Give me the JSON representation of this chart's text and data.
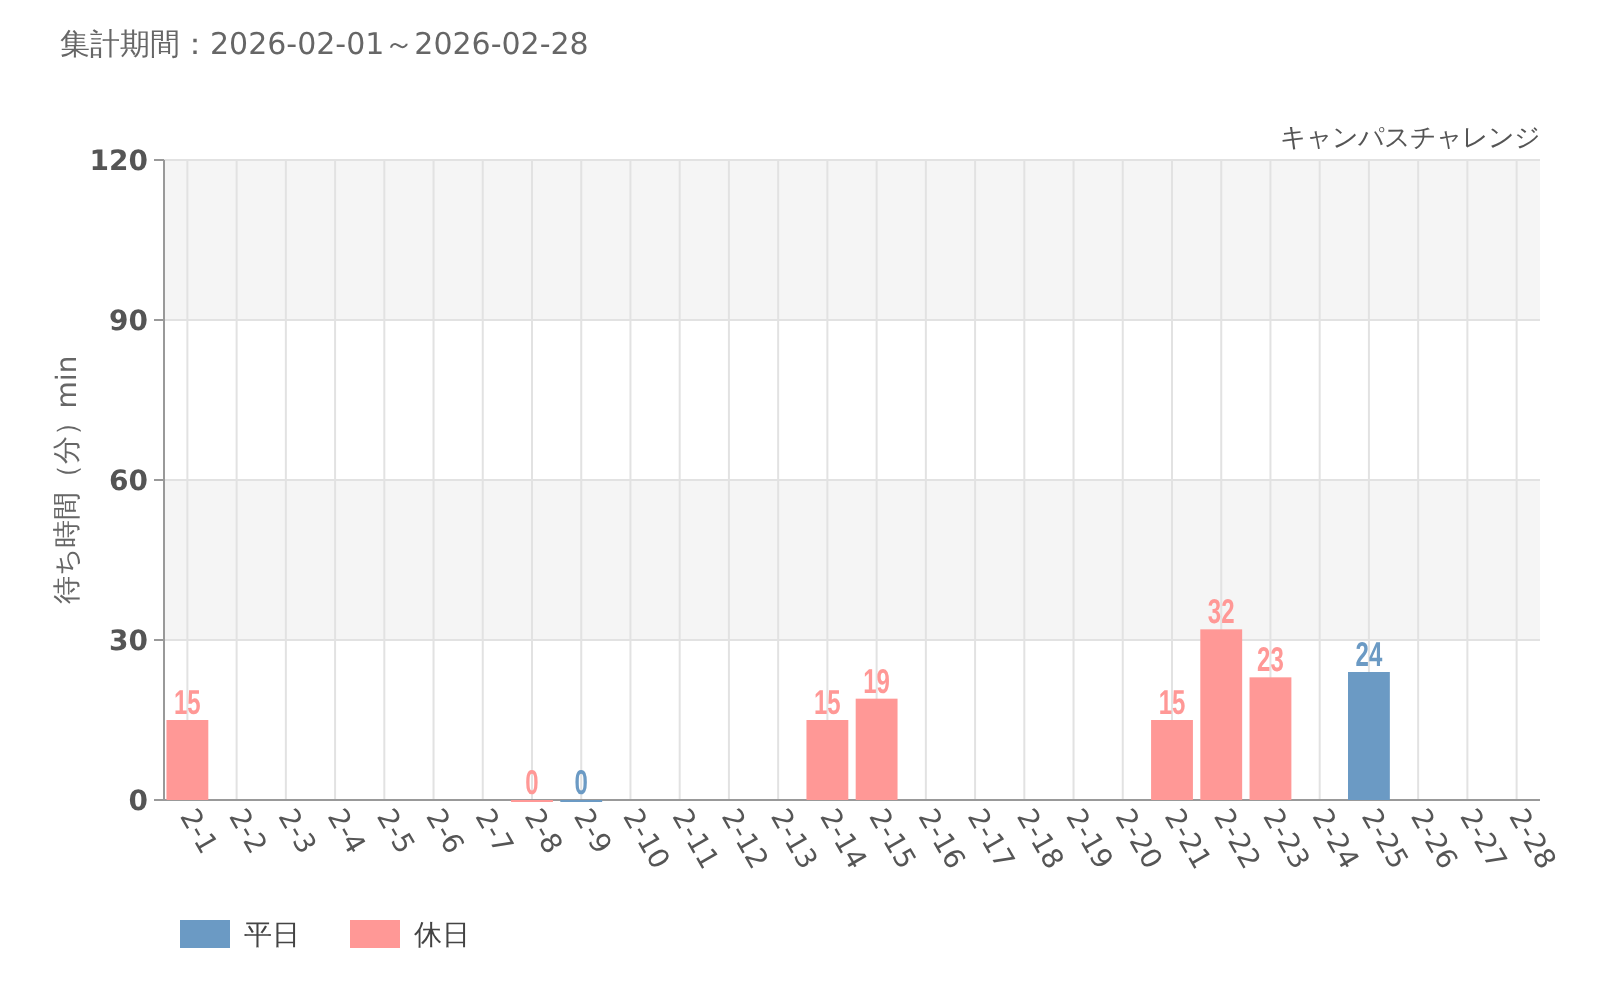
{
  "chart_data": {
    "type": "bar",
    "title": "集計期間：2026-02-01～2026-02-28",
    "subtitle": "キャンパスチャレンジ",
    "ylabel": "待ち時間（分）min",
    "categories": [
      "2-1",
      "2-2",
      "2-3",
      "2-4",
      "2-5",
      "2-6",
      "2-7",
      "2-8",
      "2-9",
      "2-10",
      "2-11",
      "2-12",
      "2-13",
      "2-14",
      "2-15",
      "2-16",
      "2-17",
      "2-18",
      "2-19",
      "2-20",
      "2-21",
      "2-22",
      "2-23",
      "2-24",
      "2-25",
      "2-26",
      "2-27",
      "2-28"
    ],
    "series": [
      {
        "name": "平日",
        "color": "#6b9ac4",
        "values": [
          null,
          null,
          null,
          null,
          null,
          null,
          null,
          null,
          0,
          null,
          null,
          null,
          null,
          null,
          null,
          null,
          null,
          null,
          null,
          null,
          null,
          null,
          null,
          null,
          24,
          null,
          null,
          null
        ]
      },
      {
        "name": "休日",
        "color": "#ff9896",
        "values": [
          15,
          null,
          null,
          null,
          null,
          null,
          null,
          0,
          null,
          null,
          null,
          null,
          null,
          15,
          19,
          null,
          null,
          null,
          null,
          null,
          15,
          32,
          23,
          null,
          null,
          null,
          null,
          null
        ]
      }
    ],
    "stacked": true,
    "ylim": [
      0,
      120
    ],
    "yticks": [
      0,
      30,
      60,
      90,
      120
    ],
    "grid": true,
    "legend": "bottom left",
    "data_labels": true
  }
}
